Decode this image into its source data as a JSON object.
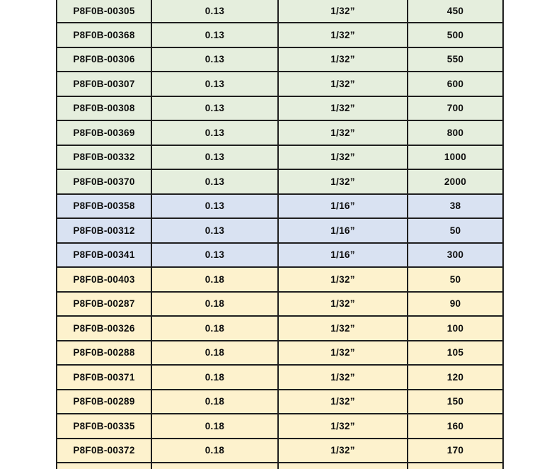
{
  "table": {
    "group_colors": {
      "green": "#e5eedd",
      "blue": "#d9e2f2",
      "yellow": "#fdf2cd"
    },
    "border_color": "#1f1f1f",
    "columns": [
      "part_number",
      "thickness",
      "size",
      "quantity"
    ],
    "rows": [
      {
        "part_number": "P8F0B-00305",
        "thickness": "0.13",
        "size": "1/32”",
        "quantity": "450",
        "group": "green"
      },
      {
        "part_number": "P8F0B-00368",
        "thickness": "0.13",
        "size": "1/32”",
        "quantity": "500",
        "group": "green"
      },
      {
        "part_number": "P8F0B-00306",
        "thickness": "0.13",
        "size": "1/32”",
        "quantity": "550",
        "group": "green"
      },
      {
        "part_number": "P8F0B-00307",
        "thickness": "0.13",
        "size": "1/32”",
        "quantity": "600",
        "group": "green"
      },
      {
        "part_number": "P8F0B-00308",
        "thickness": "0.13",
        "size": "1/32”",
        "quantity": "700",
        "group": "green"
      },
      {
        "part_number": "P8F0B-00369",
        "thickness": "0.13",
        "size": "1/32”",
        "quantity": "800",
        "group": "green"
      },
      {
        "part_number": "P8F0B-00332",
        "thickness": "0.13",
        "size": "1/32”",
        "quantity": "1000",
        "group": "green"
      },
      {
        "part_number": "P8F0B-00370",
        "thickness": "0.13",
        "size": "1/32”",
        "quantity": "2000",
        "group": "green"
      },
      {
        "part_number": "P8F0B-00358",
        "thickness": "0.13",
        "size": "1/16”",
        "quantity": "38",
        "group": "blue"
      },
      {
        "part_number": "P8F0B-00312",
        "thickness": "0.13",
        "size": "1/16”",
        "quantity": "50",
        "group": "blue"
      },
      {
        "part_number": "P8F0B-00341",
        "thickness": "0.13",
        "size": "1/16”",
        "quantity": "300",
        "group": "blue"
      },
      {
        "part_number": "P8F0B-00403",
        "thickness": "0.18",
        "size": "1/32”",
        "quantity": "50",
        "group": "yellow"
      },
      {
        "part_number": "P8F0B-00287",
        "thickness": "0.18",
        "size": "1/32”",
        "quantity": "90",
        "group": "yellow"
      },
      {
        "part_number": "P8F0B-00326",
        "thickness": "0.18",
        "size": "1/32”",
        "quantity": "100",
        "group": "yellow"
      },
      {
        "part_number": "P8F0B-00288",
        "thickness": "0.18",
        "size": "1/32”",
        "quantity": "105",
        "group": "yellow"
      },
      {
        "part_number": "P8F0B-00371",
        "thickness": "0.18",
        "size": "1/32”",
        "quantity": "120",
        "group": "yellow"
      },
      {
        "part_number": "P8F0B-00289",
        "thickness": "0.18",
        "size": "1/32”",
        "quantity": "150",
        "group": "yellow"
      },
      {
        "part_number": "P8F0B-00335",
        "thickness": "0.18",
        "size": "1/32”",
        "quantity": "160",
        "group": "yellow"
      },
      {
        "part_number": "P8F0B-00372",
        "thickness": "0.18",
        "size": "1/32”",
        "quantity": "170",
        "group": "yellow"
      }
    ],
    "partial_bottom_row": {
      "group": "yellow"
    }
  }
}
